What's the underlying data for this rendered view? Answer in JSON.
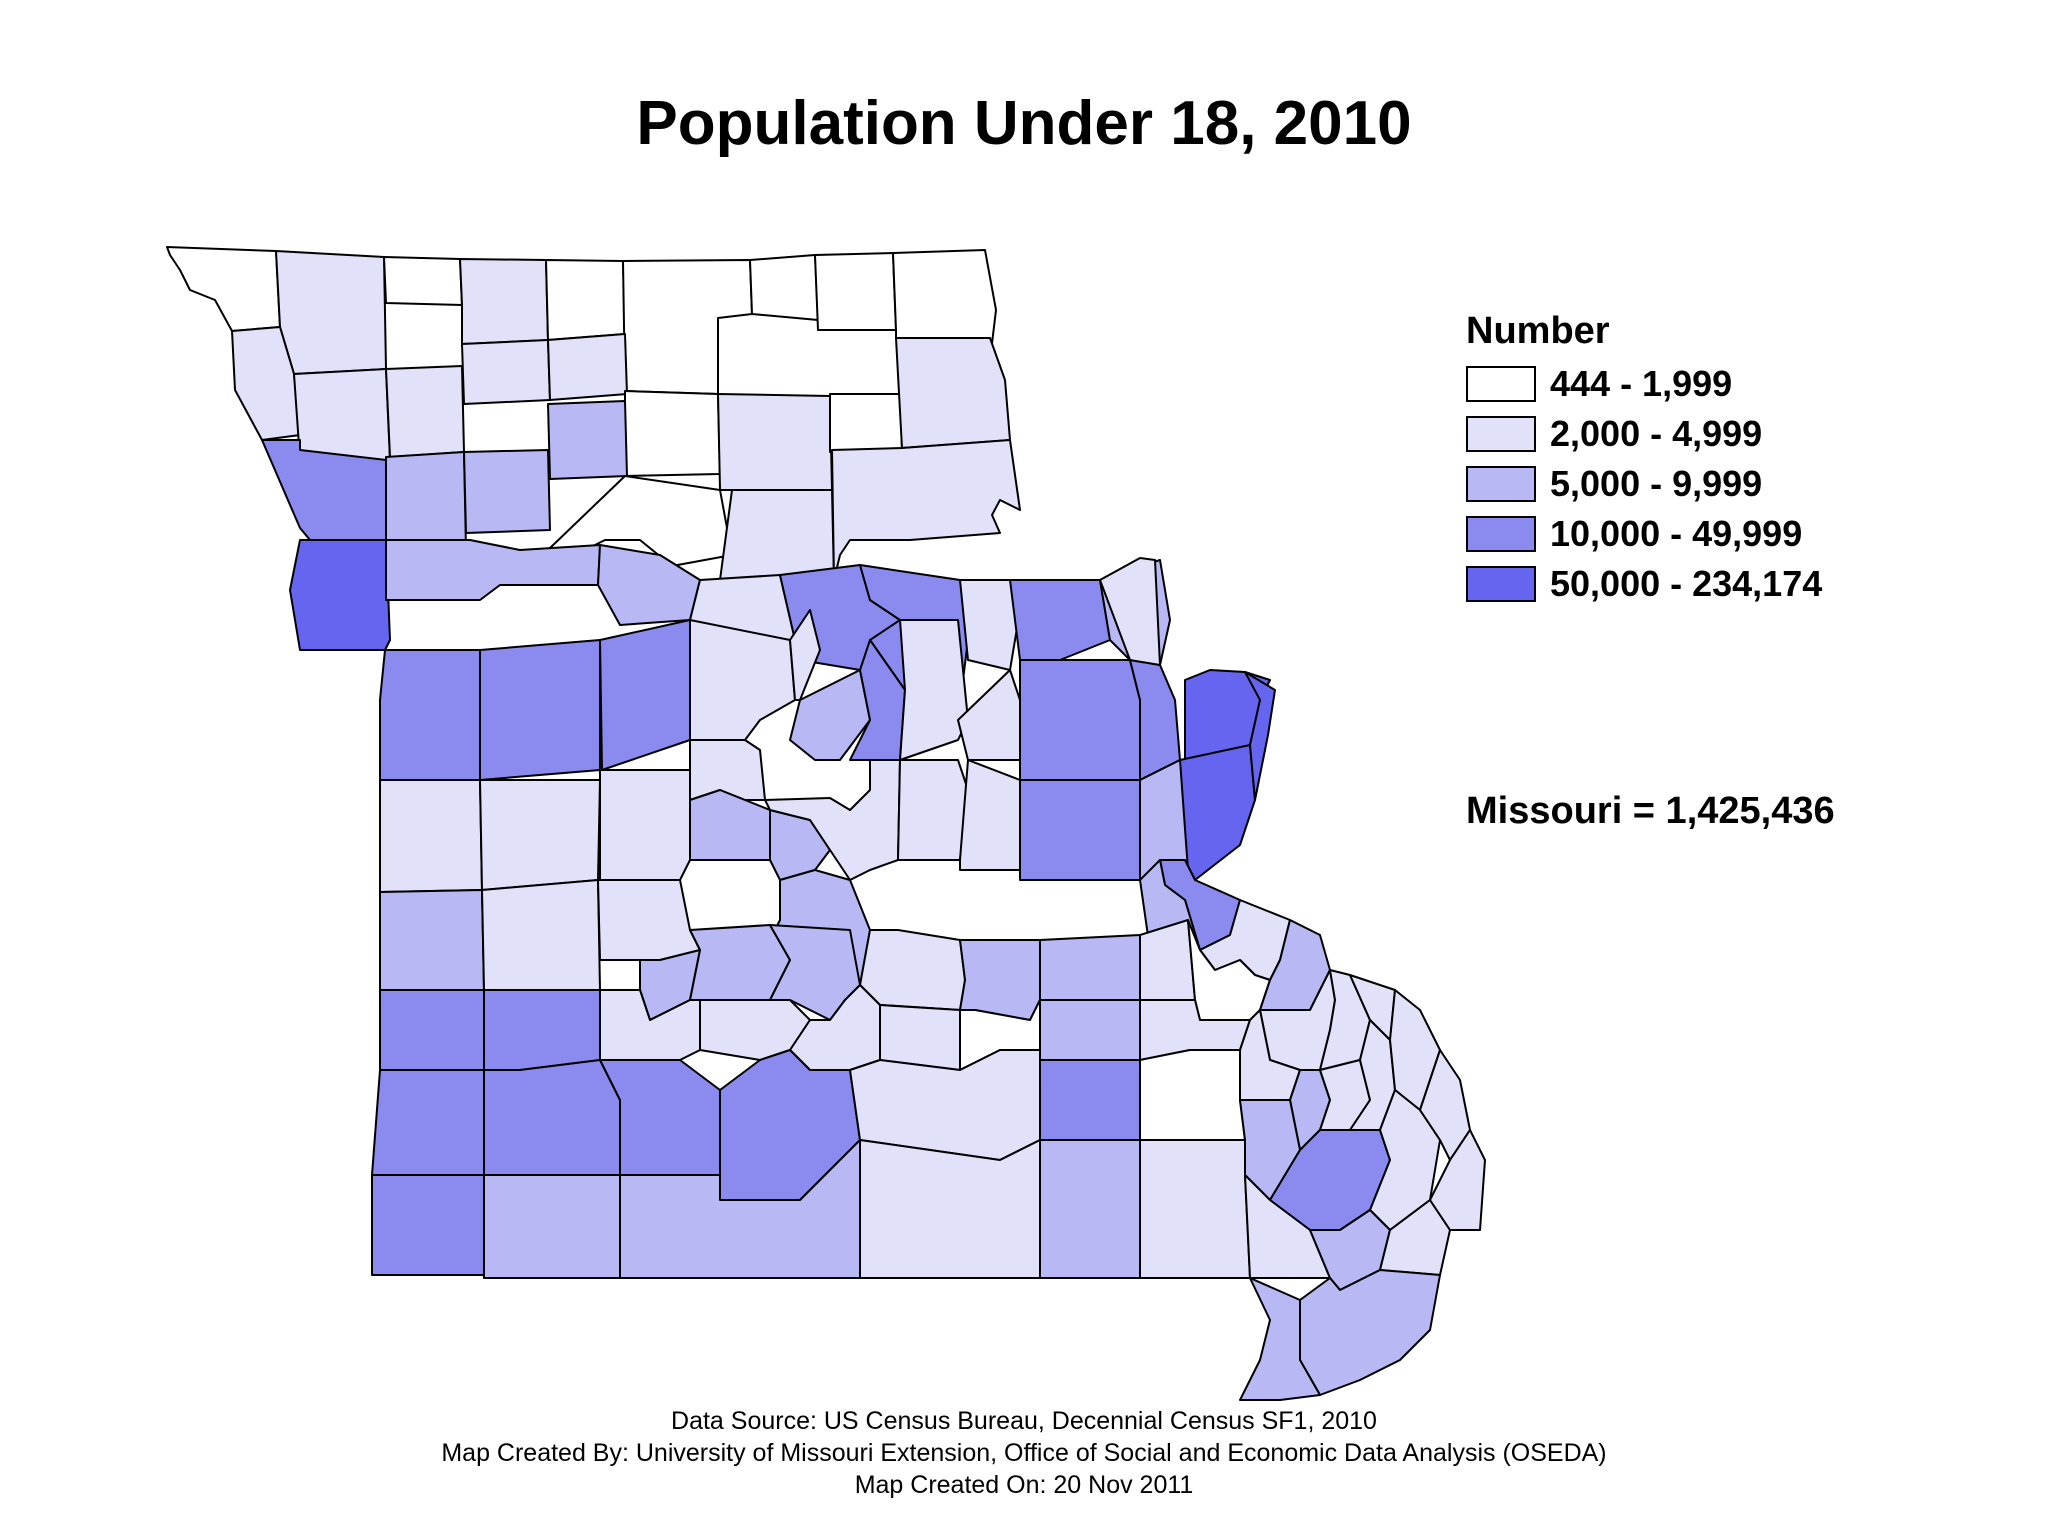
{
  "map": {
    "title": "Population Under 18, 2010",
    "legend": {
      "title": "Number",
      "classes": [
        {
          "label": "444 - 1,999",
          "color": "#ffffff"
        },
        {
          "label": "2,000 - 4,999",
          "color": "#e1e1fa"
        },
        {
          "label": "5,000 - 9,999",
          "color": "#b8b8f4"
        },
        {
          "label": "10,000 - 49,999",
          "color": "#8b8bef"
        },
        {
          "label": "50,000 - 234,174",
          "color": "#6565ef"
        }
      ]
    },
    "state_total": "Missouri = 1,425,436",
    "footer": [
      "Data Source: US Census Bureau, Decennial Census SF1, 2010",
      "Map Created By: University of Missouri Extension, Office of Social and Economic Data Analysis (OSEDA)",
      "Map Created On: 20 Nov 2011"
    ]
  }
}
